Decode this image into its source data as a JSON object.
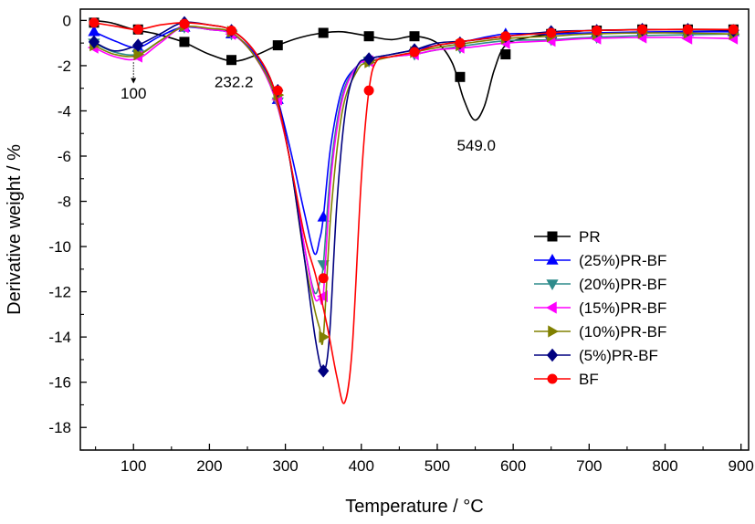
{
  "chart_data": {
    "type": "line",
    "title": "",
    "xlabel": "Temperature / °C",
    "ylabel": "Derivative weight / %",
    "xlim": [
      30,
      910
    ],
    "ylim": [
      -19,
      0.5
    ],
    "xticks": [
      100,
      200,
      300,
      400,
      500,
      600,
      700,
      800,
      900
    ],
    "yticks": [
      0,
      -2,
      -4,
      -6,
      -8,
      -10,
      -12,
      -14,
      -16,
      -18
    ],
    "grid": false,
    "legend_position": "bottom-right",
    "annotations": [
      {
        "text": "100",
        "x": 100,
        "y": -1.6,
        "arrow": true
      },
      {
        "text": "232.2",
        "x": 232.2,
        "y": -1.8
      },
      {
        "text": "549.0",
        "x": 549.0,
        "y": -4.4
      }
    ],
    "series": [
      {
        "name": "PR",
        "color": "#000000",
        "marker": "square",
        "curve": [
          [
            45,
            0
          ],
          [
            70,
            -0.1
          ],
          [
            100,
            -0.4
          ],
          [
            130,
            -0.6
          ],
          [
            165,
            -0.95
          ],
          [
            200,
            -1.5
          ],
          [
            232,
            -1.8
          ],
          [
            260,
            -1.55
          ],
          [
            290,
            -1.1
          ],
          [
            320,
            -0.75
          ],
          [
            350,
            -0.55
          ],
          [
            375,
            -0.5
          ],
          [
            410,
            -0.7
          ],
          [
            440,
            -0.85
          ],
          [
            470,
            -0.7
          ],
          [
            500,
            -1.0
          ],
          [
            520,
            -1.9
          ],
          [
            535,
            -3.5
          ],
          [
            549,
            -4.4
          ],
          [
            562,
            -3.8
          ],
          [
            575,
            -2.2
          ],
          [
            590,
            -1.1
          ],
          [
            620,
            -0.75
          ],
          [
            650,
            -0.6
          ],
          [
            700,
            -0.45
          ],
          [
            800,
            -0.4
          ],
          [
            890,
            -0.4
          ]
        ],
        "markers": [
          [
            48,
            -0.1
          ],
          [
            106,
            -0.4
          ],
          [
            167,
            -0.95
          ],
          [
            229,
            -1.75
          ],
          [
            290,
            -1.1
          ],
          [
            350,
            -0.55
          ],
          [
            410,
            -0.7
          ],
          [
            470,
            -0.7
          ],
          [
            530,
            -2.5
          ],
          [
            590,
            -1.5
          ],
          [
            650,
            -0.6
          ],
          [
            710,
            -0.45
          ],
          [
            770,
            -0.4
          ],
          [
            830,
            -0.4
          ],
          [
            890,
            -0.4
          ]
        ]
      },
      {
        "name": "(25%)PR-BF",
        "color": "#0000ff",
        "marker": "triangle-up",
        "curve": [
          [
            48,
            -0.5
          ],
          [
            75,
            -0.9
          ],
          [
            105,
            -1.2
          ],
          [
            135,
            -0.7
          ],
          [
            165,
            -0.3
          ],
          [
            200,
            -0.4
          ],
          [
            230,
            -0.6
          ],
          [
            260,
            -1.5
          ],
          [
            285,
            -3.0
          ],
          [
            305,
            -5.5
          ],
          [
            325,
            -8.5
          ],
          [
            338,
            -10.3
          ],
          [
            345,
            -9.7
          ],
          [
            350,
            -8.7
          ],
          [
            360,
            -5.5
          ],
          [
            375,
            -3.0
          ],
          [
            395,
            -2.0
          ],
          [
            410,
            -1.7
          ],
          [
            440,
            -1.5
          ],
          [
            470,
            -1.3
          ],
          [
            500,
            -1.1
          ],
          [
            540,
            -0.9
          ],
          [
            590,
            -0.6
          ],
          [
            650,
            -0.6
          ],
          [
            700,
            -0.55
          ],
          [
            800,
            -0.5
          ],
          [
            890,
            -0.5
          ]
        ],
        "markers": [
          [
            48,
            -0.5
          ],
          [
            106,
            -1.2
          ],
          [
            167,
            -0.3
          ],
          [
            229,
            -0.6
          ],
          [
            290,
            -3.5
          ],
          [
            350,
            -8.7
          ],
          [
            410,
            -1.7
          ],
          [
            470,
            -1.3
          ],
          [
            530,
            -1.0
          ],
          [
            590,
            -0.6
          ],
          [
            650,
            -0.6
          ],
          [
            710,
            -0.55
          ],
          [
            770,
            -0.5
          ],
          [
            830,
            -0.5
          ],
          [
            890,
            -0.5
          ]
        ]
      },
      {
        "name": "(20%)PR-BF",
        "color": "#2e8b8b",
        "marker": "triangle-down",
        "curve": [
          [
            48,
            -1.0
          ],
          [
            75,
            -1.4
          ],
          [
            105,
            -1.5
          ],
          [
            135,
            -0.9
          ],
          [
            165,
            -0.3
          ],
          [
            200,
            -0.4
          ],
          [
            230,
            -0.6
          ],
          [
            260,
            -1.6
          ],
          [
            285,
            -3.3
          ],
          [
            305,
            -6.0
          ],
          [
            325,
            -10.0
          ],
          [
            338,
            -12.0
          ],
          [
            345,
            -11.6
          ],
          [
            350,
            -10.8
          ],
          [
            360,
            -6.5
          ],
          [
            375,
            -3.3
          ],
          [
            395,
            -2.0
          ],
          [
            410,
            -1.8
          ],
          [
            440,
            -1.6
          ],
          [
            470,
            -1.5
          ],
          [
            500,
            -1.3
          ],
          [
            540,
            -1.1
          ],
          [
            590,
            -0.9
          ],
          [
            650,
            -0.85
          ],
          [
            700,
            -0.75
          ],
          [
            800,
            -0.65
          ],
          [
            890,
            -0.6
          ]
        ],
        "markers": [
          [
            48,
            -1.0
          ],
          [
            106,
            -1.5
          ],
          [
            167,
            -0.3
          ],
          [
            229,
            -0.6
          ],
          [
            290,
            -3.6
          ],
          [
            350,
            -10.8
          ],
          [
            410,
            -1.8
          ],
          [
            470,
            -1.5
          ],
          [
            530,
            -1.2
          ],
          [
            590,
            -0.9
          ],
          [
            650,
            -0.85
          ],
          [
            710,
            -0.75
          ],
          [
            770,
            -0.65
          ],
          [
            830,
            -0.6
          ],
          [
            890,
            -0.6
          ]
        ]
      },
      {
        "name": "(15%)PR-BF",
        "color": "#ff00ff",
        "marker": "triangle-left",
        "curve": [
          [
            48,
            -1.2
          ],
          [
            75,
            -1.6
          ],
          [
            105,
            -1.7
          ],
          [
            135,
            -1.0
          ],
          [
            165,
            -0.3
          ],
          [
            200,
            -0.4
          ],
          [
            230,
            -0.6
          ],
          [
            260,
            -1.6
          ],
          [
            285,
            -3.3
          ],
          [
            305,
            -6.0
          ],
          [
            325,
            -10.0
          ],
          [
            338,
            -12.2
          ],
          [
            345,
            -12.3
          ],
          [
            350,
            -12.1
          ],
          [
            360,
            -7.0
          ],
          [
            375,
            -3.5
          ],
          [
            395,
            -2.0
          ],
          [
            410,
            -1.8
          ],
          [
            440,
            -1.6
          ],
          [
            470,
            -1.5
          ],
          [
            500,
            -1.3
          ],
          [
            540,
            -1.2
          ],
          [
            590,
            -1.0
          ],
          [
            650,
            -0.9
          ],
          [
            700,
            -0.8
          ],
          [
            800,
            -0.75
          ],
          [
            890,
            -0.8
          ]
        ],
        "markers": [
          [
            48,
            -1.2
          ],
          [
            106,
            -1.6
          ],
          [
            167,
            -0.3
          ],
          [
            229,
            -0.6
          ],
          [
            290,
            -3.5
          ],
          [
            350,
            -12.2
          ],
          [
            410,
            -1.8
          ],
          [
            470,
            -1.5
          ],
          [
            530,
            -1.2
          ],
          [
            590,
            -1.0
          ],
          [
            650,
            -0.9
          ],
          [
            710,
            -0.8
          ],
          [
            770,
            -0.75
          ],
          [
            830,
            -0.8
          ],
          [
            890,
            -0.8
          ]
        ]
      },
      {
        "name": "(10%)PR-BF",
        "color": "#808000",
        "marker": "triangle-right",
        "curve": [
          [
            48,
            -1.1
          ],
          [
            75,
            -1.5
          ],
          [
            105,
            -1.55
          ],
          [
            135,
            -0.9
          ],
          [
            165,
            -0.3
          ],
          [
            200,
            -0.35
          ],
          [
            230,
            -0.55
          ],
          [
            260,
            -1.6
          ],
          [
            285,
            -3.2
          ],
          [
            305,
            -6.0
          ],
          [
            325,
            -10.5
          ],
          [
            338,
            -12.7
          ],
          [
            345,
            -13.6
          ],
          [
            350,
            -14.0
          ],
          [
            360,
            -8.5
          ],
          [
            375,
            -4.0
          ],
          [
            395,
            -2.2
          ],
          [
            410,
            -1.85
          ],
          [
            440,
            -1.6
          ],
          [
            470,
            -1.4
          ],
          [
            500,
            -1.2
          ],
          [
            540,
            -1.0
          ],
          [
            590,
            -0.8
          ],
          [
            650,
            -0.7
          ],
          [
            700,
            -0.6
          ],
          [
            800,
            -0.55
          ],
          [
            890,
            -0.6
          ]
        ],
        "markers": [
          [
            48,
            -1.1
          ],
          [
            106,
            -1.5
          ],
          [
            167,
            -0.25
          ],
          [
            229,
            -0.5
          ],
          [
            290,
            -3.3
          ],
          [
            350,
            -14.0
          ],
          [
            410,
            -1.85
          ],
          [
            470,
            -1.4
          ],
          [
            530,
            -1.1
          ],
          [
            590,
            -0.8
          ],
          [
            650,
            -0.7
          ],
          [
            710,
            -0.6
          ],
          [
            770,
            -0.55
          ],
          [
            830,
            -0.55
          ],
          [
            890,
            -0.6
          ]
        ]
      },
      {
        "name": "(5%)PR-BF",
        "color": "#000080",
        "marker": "diamond",
        "curve": [
          [
            48,
            -0.95
          ],
          [
            75,
            -1.35
          ],
          [
            105,
            -1.1
          ],
          [
            135,
            -0.6
          ],
          [
            165,
            -0.1
          ],
          [
            200,
            -0.2
          ],
          [
            230,
            -0.45
          ],
          [
            260,
            -1.4
          ],
          [
            285,
            -3.0
          ],
          [
            305,
            -6.0
          ],
          [
            325,
            -10.5
          ],
          [
            340,
            -14.2
          ],
          [
            350,
            -15.5
          ],
          [
            358,
            -14.0
          ],
          [
            368,
            -8.0
          ],
          [
            380,
            -3.8
          ],
          [
            395,
            -2.0
          ],
          [
            410,
            -1.7
          ],
          [
            440,
            -1.5
          ],
          [
            470,
            -1.3
          ],
          [
            500,
            -1.0
          ],
          [
            540,
            -0.9
          ],
          [
            590,
            -0.7
          ],
          [
            650,
            -0.5
          ],
          [
            700,
            -0.45
          ],
          [
            800,
            -0.4
          ],
          [
            890,
            -0.45
          ]
        ],
        "markers": [
          [
            48,
            -0.95
          ],
          [
            106,
            -1.1
          ],
          [
            167,
            -0.1
          ],
          [
            229,
            -0.45
          ],
          [
            290,
            -3.1
          ],
          [
            350,
            -15.5
          ],
          [
            410,
            -1.7
          ],
          [
            470,
            -1.3
          ],
          [
            530,
            -1.0
          ],
          [
            590,
            -0.7
          ],
          [
            650,
            -0.5
          ],
          [
            710,
            -0.45
          ],
          [
            770,
            -0.4
          ],
          [
            830,
            -0.4
          ],
          [
            890,
            -0.45
          ]
        ]
      },
      {
        "name": "BF",
        "color": "#ff0000",
        "marker": "circle",
        "curve": [
          [
            48,
            -0.1
          ],
          [
            75,
            -0.25
          ],
          [
            105,
            -0.4
          ],
          [
            135,
            -0.2
          ],
          [
            165,
            -0.1
          ],
          [
            200,
            -0.2
          ],
          [
            230,
            -0.45
          ],
          [
            260,
            -1.4
          ],
          [
            285,
            -3.0
          ],
          [
            305,
            -6.0
          ],
          [
            325,
            -9.5
          ],
          [
            340,
            -11.3
          ],
          [
            355,
            -13.5
          ],
          [
            368,
            -15.8
          ],
          [
            378,
            -16.9
          ],
          [
            388,
            -14.5
          ],
          [
            400,
            -7.0
          ],
          [
            410,
            -3.1
          ],
          [
            420,
            -1.8
          ],
          [
            440,
            -1.6
          ],
          [
            470,
            -1.4
          ],
          [
            500,
            -1.1
          ],
          [
            540,
            -0.9
          ],
          [
            590,
            -0.7
          ],
          [
            650,
            -0.55
          ],
          [
            700,
            -0.45
          ],
          [
            800,
            -0.4
          ],
          [
            890,
            -0.4
          ]
        ],
        "markers": [
          [
            48,
            -0.1
          ],
          [
            106,
            -0.4
          ],
          [
            167,
            -0.15
          ],
          [
            229,
            -0.45
          ],
          [
            290,
            -3.1
          ],
          [
            350,
            -11.4
          ],
          [
            410,
            -3.1
          ],
          [
            470,
            -1.4
          ],
          [
            530,
            -1.0
          ],
          [
            590,
            -0.7
          ],
          [
            650,
            -0.55
          ],
          [
            710,
            -0.45
          ],
          [
            770,
            -0.4
          ],
          [
            830,
            -0.4
          ],
          [
            890,
            -0.4
          ]
        ]
      }
    ]
  }
}
